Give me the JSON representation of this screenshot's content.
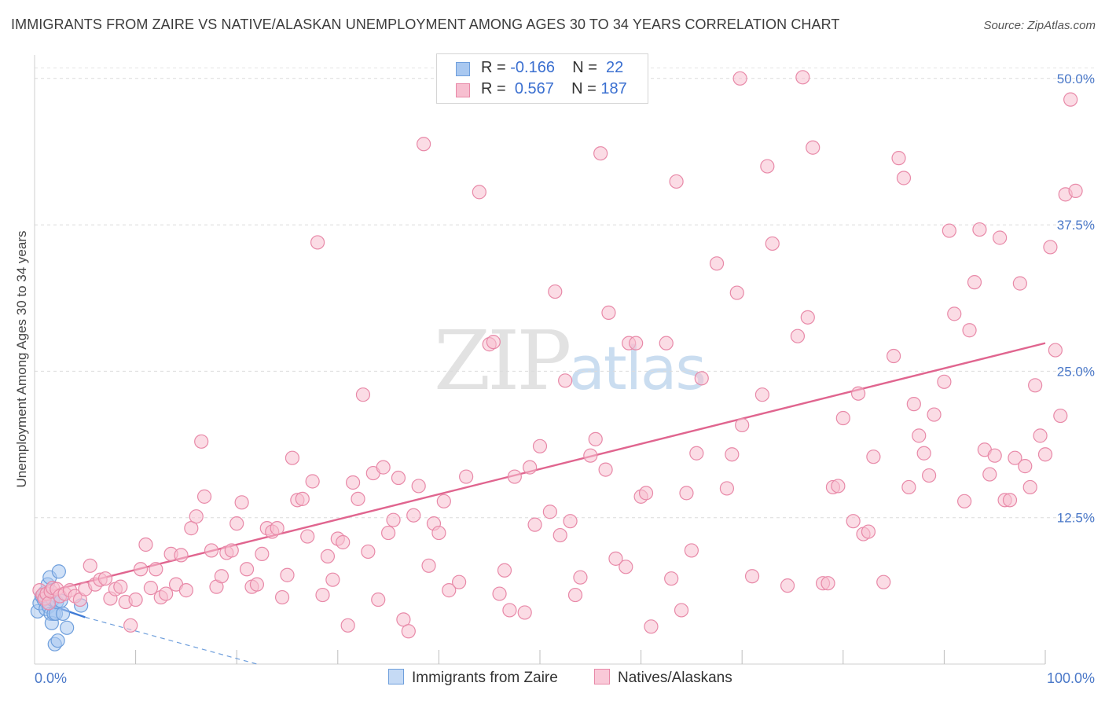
{
  "header": {
    "title": "IMMIGRANTS FROM ZAIRE VS NATIVE/ALASKAN UNEMPLOYMENT AMONG AGES 30 TO 34 YEARS CORRELATION CHART",
    "source": "Source: ZipAtlas.com"
  },
  "watermark": {
    "zip": "ZIP",
    "atlas": "atlas"
  },
  "legend": {
    "rows": [
      {
        "r_label": "R =",
        "r_value": "-0.166",
        "n_label": "N =",
        "n_value": "22",
        "color": "#a9c8f0",
        "border": "#6f9fdc"
      },
      {
        "r_label": "R =",
        "r_value": "0.567",
        "n_label": "N =",
        "n_value": "187",
        "color": "#f7bfd0",
        "border": "#e889a8"
      }
    ]
  },
  "bottom_legend": {
    "items": [
      {
        "label": "Immigrants from Zaire",
        "color": "#c5daf5",
        "border": "#6f9fdc"
      },
      {
        "label": "Natives/Alaskans",
        "color": "#f9c9d8",
        "border": "#e889a8"
      }
    ]
  },
  "chart_data": {
    "type": "scatter",
    "title": "IMMIGRANTS FROM ZAIRE VS NATIVE/ALASKAN UNEMPLOYMENT AMONG AGES 30 TO 34 YEARS CORRELATION CHART",
    "xlabel": "",
    "ylabel": "Unemployment Among Ages 30 to 34 years",
    "xlim": [
      0,
      100
    ],
    "ylim": [
      0,
      52
    ],
    "x_tick_labels": [
      "0.0%",
      "100.0%"
    ],
    "y_ticks": [
      12.5,
      25.0,
      37.5,
      50.0
    ],
    "y_tick_labels": [
      "12.5%",
      "25.0%",
      "37.5%",
      "50.0%"
    ],
    "grid": true,
    "series": [
      {
        "name": "Immigrants from Zaire",
        "color": "#6f9fdc",
        "fill": "#a9c8f0",
        "points": [
          [
            0.3,
            4.5
          ],
          [
            0.5,
            5.2
          ],
          [
            0.7,
            5.8
          ],
          [
            0.9,
            5.5
          ],
          [
            1.0,
            6.1
          ],
          [
            1.1,
            4.7
          ],
          [
            1.3,
            6.8
          ],
          [
            1.4,
            4.9
          ],
          [
            1.5,
            7.4
          ],
          [
            1.6,
            4.3
          ],
          [
            1.7,
            3.5
          ],
          [
            1.8,
            5.5
          ],
          [
            1.9,
            4.3
          ],
          [
            2.0,
            1.7
          ],
          [
            2.1,
            4.3
          ],
          [
            2.2,
            5.3
          ],
          [
            2.3,
            2.0
          ],
          [
            2.4,
            7.9
          ],
          [
            2.6,
            5.4
          ],
          [
            2.8,
            4.3
          ],
          [
            3.2,
            3.1
          ],
          [
            4.6,
            5.0
          ]
        ],
        "trend": {
          "x": [
            0.3,
            5.0
          ],
          "y": [
            5.4,
            4.0
          ]
        },
        "trend_dashed": {
          "x": [
            5.0,
            22.0
          ],
          "y": [
            4.0,
            0.0
          ]
        }
      },
      {
        "name": "Natives/Alaskans",
        "color": "#e889a8",
        "fill": "#f7bfd0",
        "points": [
          [
            0.5,
            6.3
          ],
          [
            0.8,
            5.9
          ],
          [
            1.0,
            5.6
          ],
          [
            1.2,
            6.0
          ],
          [
            1.4,
            5.2
          ],
          [
            1.6,
            6.2
          ],
          [
            1.8,
            6.5
          ],
          [
            2.2,
            6.4
          ],
          [
            2.5,
            5.8
          ],
          [
            3.0,
            6.0
          ],
          [
            3.5,
            6.3
          ],
          [
            4.0,
            5.8
          ],
          [
            4.5,
            5.5
          ],
          [
            5.0,
            6.4
          ],
          [
            5.5,
            8.4
          ],
          [
            6.0,
            6.8
          ],
          [
            6.5,
            7.2
          ],
          [
            7.0,
            7.3
          ],
          [
            7.5,
            5.6
          ],
          [
            8.0,
            6.4
          ],
          [
            8.5,
            6.6
          ],
          [
            9.0,
            5.3
          ],
          [
            9.5,
            3.3
          ],
          [
            10.0,
            5.5
          ],
          [
            10.5,
            8.1
          ],
          [
            11.0,
            10.2
          ],
          [
            11.5,
            6.5
          ],
          [
            12.0,
            8.1
          ],
          [
            12.5,
            5.7
          ],
          [
            13.0,
            6.0
          ],
          [
            13.5,
            9.4
          ],
          [
            14.0,
            6.8
          ],
          [
            14.5,
            9.3
          ],
          [
            15.0,
            6.3
          ],
          [
            15.5,
            11.6
          ],
          [
            16.0,
            12.6
          ],
          [
            16.5,
            19.0
          ],
          [
            16.8,
            14.3
          ],
          [
            17.5,
            9.7
          ],
          [
            18.0,
            6.6
          ],
          [
            18.5,
            7.5
          ],
          [
            19.0,
            9.5
          ],
          [
            19.5,
            9.7
          ],
          [
            20.0,
            12.0
          ],
          [
            20.5,
            13.8
          ],
          [
            21.0,
            8.1
          ],
          [
            21.5,
            6.6
          ],
          [
            22.0,
            6.8
          ],
          [
            22.5,
            9.4
          ],
          [
            23.0,
            11.6
          ],
          [
            23.5,
            11.3
          ],
          [
            24.0,
            11.6
          ],
          [
            24.5,
            5.7
          ],
          [
            25.0,
            7.6
          ],
          [
            25.5,
            17.6
          ],
          [
            26.0,
            14.0
          ],
          [
            26.5,
            14.1
          ],
          [
            27.0,
            10.9
          ],
          [
            27.5,
            15.6
          ],
          [
            28.0,
            36.0
          ],
          [
            28.5,
            5.9
          ],
          [
            29.0,
            9.2
          ],
          [
            29.5,
            7.2
          ],
          [
            30.0,
            10.7
          ],
          [
            30.5,
            10.4
          ],
          [
            31.0,
            3.3
          ],
          [
            31.5,
            15.5
          ],
          [
            32.0,
            14.1
          ],
          [
            32.5,
            23.0
          ],
          [
            33.0,
            9.6
          ],
          [
            33.5,
            16.3
          ],
          [
            34.0,
            5.5
          ],
          [
            34.5,
            16.8
          ],
          [
            35.0,
            11.2
          ],
          [
            35.5,
            12.3
          ],
          [
            36.0,
            15.9
          ],
          [
            36.5,
            3.8
          ],
          [
            37.0,
            2.8
          ],
          [
            37.5,
            12.7
          ],
          [
            38.0,
            15.2
          ],
          [
            38.5,
            44.4
          ],
          [
            39.0,
            8.4
          ],
          [
            39.5,
            12.0
          ],
          [
            40.0,
            11.2
          ],
          [
            40.5,
            13.9
          ],
          [
            41.0,
            6.3
          ],
          [
            42.0,
            7.0
          ],
          [
            42.7,
            16.0
          ],
          [
            44.0,
            40.3
          ],
          [
            45.0,
            27.3
          ],
          [
            45.4,
            27.5
          ],
          [
            46.0,
            6.0
          ],
          [
            46.5,
            8.0
          ],
          [
            47.0,
            4.6
          ],
          [
            47.5,
            16.0
          ],
          [
            48.5,
            4.4
          ],
          [
            49.0,
            16.8
          ],
          [
            49.5,
            11.9
          ],
          [
            50.0,
            18.6
          ],
          [
            51.0,
            13.0
          ],
          [
            51.5,
            31.8
          ],
          [
            52.0,
            11.0
          ],
          [
            52.5,
            24.2
          ],
          [
            53.0,
            12.2
          ],
          [
            53.5,
            5.9
          ],
          [
            54.0,
            7.4
          ],
          [
            55.0,
            17.8
          ],
          [
            55.5,
            19.2
          ],
          [
            56.0,
            43.6
          ],
          [
            56.5,
            16.6
          ],
          [
            56.8,
            30.0
          ],
          [
            57.5,
            9.0
          ],
          [
            58.5,
            8.3
          ],
          [
            58.8,
            27.4
          ],
          [
            59.5,
            27.4
          ],
          [
            60.0,
            14.3
          ],
          [
            60.5,
            14.6
          ],
          [
            61.0,
            3.2
          ],
          [
            62.5,
            27.4
          ],
          [
            63.0,
            7.3
          ],
          [
            63.5,
            41.2
          ],
          [
            64.0,
            4.6
          ],
          [
            64.5,
            14.6
          ],
          [
            65.0,
            9.7
          ],
          [
            65.5,
            18.0
          ],
          [
            66.0,
            24.4
          ],
          [
            67.5,
            34.2
          ],
          [
            68.5,
            15.0
          ],
          [
            69.0,
            17.9
          ],
          [
            69.5,
            31.7
          ],
          [
            69.8,
            50.0
          ],
          [
            70.0,
            20.4
          ],
          [
            71.0,
            7.5
          ],
          [
            72.0,
            23.0
          ],
          [
            72.5,
            42.5
          ],
          [
            73.0,
            35.9
          ],
          [
            74.5,
            6.7
          ],
          [
            75.5,
            28.0
          ],
          [
            76.0,
            50.1
          ],
          [
            76.5,
            29.6
          ],
          [
            77.0,
            44.1
          ],
          [
            78.0,
            6.9
          ],
          [
            78.5,
            6.9
          ],
          [
            79.0,
            15.1
          ],
          [
            79.5,
            15.2
          ],
          [
            80.0,
            21.0
          ],
          [
            81.0,
            12.2
          ],
          [
            81.5,
            23.1
          ],
          [
            82.0,
            11.1
          ],
          [
            82.5,
            11.3
          ],
          [
            83.0,
            17.7
          ],
          [
            84.0,
            7.0
          ],
          [
            85.0,
            26.3
          ],
          [
            85.5,
            43.2
          ],
          [
            86.0,
            41.5
          ],
          [
            86.5,
            15.1
          ],
          [
            87.0,
            22.2
          ],
          [
            87.5,
            19.5
          ],
          [
            88.0,
            18.0
          ],
          [
            88.5,
            16.1
          ],
          [
            89.0,
            21.3
          ],
          [
            90.0,
            24.1
          ],
          [
            90.5,
            37.0
          ],
          [
            91.0,
            29.9
          ],
          [
            92.0,
            13.9
          ],
          [
            92.5,
            28.5
          ],
          [
            93.0,
            32.6
          ],
          [
            93.5,
            37.1
          ],
          [
            94.0,
            18.3
          ],
          [
            94.5,
            16.2
          ],
          [
            95.0,
            17.8
          ],
          [
            95.5,
            36.4
          ],
          [
            96.0,
            14.0
          ],
          [
            96.5,
            14.0
          ],
          [
            97.0,
            17.6
          ],
          [
            97.5,
            32.5
          ],
          [
            98.0,
            16.9
          ],
          [
            98.5,
            15.1
          ],
          [
            99.0,
            23.8
          ],
          [
            99.5,
            19.5
          ],
          [
            100.0,
            17.9
          ],
          [
            100.5,
            35.6
          ],
          [
            101.0,
            26.8
          ],
          [
            101.5,
            21.2
          ],
          [
            102.0,
            40.1
          ],
          [
            102.5,
            48.2
          ],
          [
            103.0,
            40.4
          ]
        ],
        "trend": {
          "x": [
            0,
            100
          ],
          "y": [
            5.9,
            27.4
          ]
        }
      }
    ]
  }
}
